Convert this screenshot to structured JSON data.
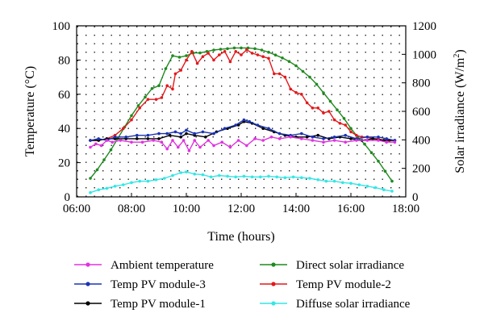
{
  "chart_data": {
    "type": "line",
    "title": "",
    "xlabel": "Time (hours)",
    "ylabel_left": "Temperature (°C)",
    "ylabel_right": "Solar irradiance (W/m²)",
    "ylabel_right_main": "Solar irradiance (W/m",
    "ylabel_right_sup": "2",
    "ylabel_right_close": ")",
    "xlim_hours": [
      6,
      18
    ],
    "ylim_left": [
      0,
      100
    ],
    "ylim_right": [
      0,
      1200
    ],
    "x_ticks": [
      {
        "hour": 6,
        "label": "06:00"
      },
      {
        "hour": 8,
        "label": "08:00"
      },
      {
        "hour": 10,
        "label": "10:00"
      },
      {
        "hour": 12,
        "label": "12:00"
      },
      {
        "hour": 14,
        "label": "14:00"
      },
      {
        "hour": 16,
        "label": "16:00"
      },
      {
        "hour": 18,
        "label": "18:00"
      }
    ],
    "y_ticks_left": [
      "0",
      "20",
      "40",
      "60",
      "80",
      "100"
    ],
    "y_ticks_right": [
      "0",
      "200",
      "400",
      "600",
      "800",
      "1000",
      "1200"
    ],
    "grid": "dotted",
    "legend_placement": "bottom",
    "series": [
      {
        "name": "Ambient temperature",
        "axis": "left",
        "color": "#e033e0",
        "x": [
          6.5,
          6.7,
          6.9,
          7.1,
          7.3,
          7.6,
          8.0,
          8.4,
          8.8,
          9.1,
          9.3,
          9.5,
          9.7,
          9.9,
          10.1,
          10.3,
          10.5,
          10.8,
          11.0,
          11.3,
          11.6,
          11.9,
          12.2,
          12.5,
          12.8,
          13.1,
          13.4,
          13.8,
          14.2,
          14.6,
          15.0,
          15.4,
          15.8,
          16.2,
          16.6,
          17.0,
          17.3,
          17.6
        ],
        "y": [
          29,
          31,
          30,
          33,
          32,
          33,
          32,
          32,
          33,
          32,
          28,
          33,
          29,
          33,
          27,
          33,
          29,
          33,
          30,
          32,
          29,
          33,
          30,
          34,
          33,
          35,
          34,
          35,
          34,
          33,
          32,
          33,
          32,
          33,
          33,
          33,
          32,
          32
        ]
      },
      {
        "name": "Temp PV module-3",
        "axis": "left",
        "color": "#1c33b3",
        "x": [
          6.5,
          6.8,
          7.1,
          7.4,
          7.8,
          8.2,
          8.6,
          9.0,
          9.3,
          9.6,
          9.8,
          10.0,
          10.3,
          10.6,
          11.0,
          11.4,
          11.8,
          12.1,
          12.3,
          12.6,
          13.0,
          13.4,
          13.8,
          14.2,
          14.6,
          15.0,
          15.4,
          15.8,
          16.2,
          16.6,
          17.0,
          17.3,
          17.6
        ],
        "y": [
          33,
          34,
          33,
          35,
          35,
          36,
          36,
          37,
          37,
          38,
          37,
          39,
          37,
          38,
          37,
          40,
          42,
          45,
          44,
          42,
          40,
          37,
          36,
          37,
          35,
          34,
          35,
          36,
          34,
          35,
          35,
          34,
          33
        ]
      },
      {
        "name": "Temp PV module-1",
        "axis": "left",
        "color": "#000000",
        "x": [
          6.5,
          6.8,
          7.1,
          7.4,
          7.8,
          8.2,
          8.6,
          9.0,
          9.4,
          9.8,
          10.0,
          10.3,
          10.7,
          11.1,
          11.5,
          11.9,
          12.1,
          12.4,
          12.8,
          13.2,
          13.6,
          14.0,
          14.4,
          14.8,
          15.2,
          15.6,
          16.0,
          16.4,
          16.8,
          17.2,
          17.6
        ],
        "y": [
          33,
          33,
          34,
          34,
          34,
          34,
          34,
          34,
          36,
          35,
          37,
          36,
          35,
          38,
          40,
          42,
          44,
          43,
          40,
          38,
          36,
          35,
          35,
          36,
          34,
          35,
          34,
          33,
          34,
          33,
          33
        ]
      },
      {
        "name": "Direct solar irradiance",
        "axis": "right",
        "color": "#1f8a1f",
        "x": [
          6.5,
          6.75,
          7.0,
          7.25,
          7.5,
          7.75,
          8.0,
          8.25,
          8.5,
          8.75,
          9.0,
          9.25,
          9.5,
          9.75,
          10.0,
          10.25,
          10.5,
          10.75,
          11.0,
          11.25,
          11.5,
          11.75,
          12.0,
          12.25,
          12.5,
          12.75,
          13.0,
          13.25,
          13.5,
          13.75,
          14.0,
          14.25,
          14.5,
          14.75,
          15.0,
          15.25,
          15.5,
          15.75,
          16.0,
          16.25,
          16.5,
          16.75,
          17.0,
          17.25,
          17.5
        ],
        "y": [
          130,
          190,
          260,
          330,
          410,
          490,
          570,
          640,
          700,
          760,
          780,
          900,
          990,
          980,
          990,
          1010,
          1010,
          1020,
          1030,
          1035,
          1040,
          1045,
          1045,
          1045,
          1040,
          1030,
          1015,
          995,
          975,
          950,
          920,
          880,
          840,
          790,
          730,
          670,
          610,
          550,
          480,
          420,
          370,
          310,
          250,
          180,
          110
        ]
      },
      {
        "name": "Temp PV module-2",
        "axis": "left",
        "color": "#e3191c",
        "x": [
          6.5,
          6.8,
          7.1,
          7.4,
          7.7,
          8.0,
          8.3,
          8.6,
          8.9,
          9.1,
          9.3,
          9.5,
          9.6,
          9.8,
          10.0,
          10.2,
          10.4,
          10.6,
          10.8,
          11.0,
          11.2,
          11.4,
          11.6,
          11.8,
          12.0,
          12.2,
          12.4,
          12.6,
          12.8,
          13.0,
          13.2,
          13.4,
          13.6,
          13.8,
          14.0,
          14.2,
          14.4,
          14.6,
          14.8,
          15.0,
          15.2,
          15.4,
          15.6,
          15.8,
          16.0,
          16.2,
          16.4,
          16.6,
          16.8,
          17.0,
          17.2,
          17.4,
          17.6
        ],
        "y": [
          33,
          33,
          34,
          36,
          40,
          45,
          52,
          57,
          57,
          58,
          65,
          63,
          72,
          74,
          80,
          85,
          78,
          82,
          84,
          80,
          83,
          85,
          79,
          85,
          83,
          86,
          84,
          83,
          82,
          81,
          72,
          72,
          70,
          63,
          61,
          60,
          55,
          52,
          52,
          49,
          50,
          45,
          43,
          42,
          38,
          36,
          35,
          35,
          34,
          34,
          33,
          33,
          33
        ]
      },
      {
        "name": "Diffuse solar irradiance",
        "axis": "right",
        "color": "#33e6e6",
        "x": [
          6.5,
          6.8,
          7.1,
          7.4,
          7.7,
          8.0,
          8.3,
          8.6,
          8.9,
          9.2,
          9.5,
          9.8,
          10.0,
          10.3,
          10.6,
          10.9,
          11.2,
          11.5,
          11.8,
          12.1,
          12.4,
          12.7,
          13.0,
          13.3,
          13.6,
          13.9,
          14.2,
          14.5,
          14.8,
          15.1,
          15.4,
          15.7,
          16.0,
          16.3,
          16.6,
          16.9,
          17.2,
          17.5
        ],
        "y": [
          30,
          50,
          60,
          75,
          85,
          100,
          110,
          110,
          120,
          130,
          150,
          170,
          175,
          160,
          155,
          140,
          150,
          145,
          140,
          145,
          140,
          140,
          145,
          140,
          135,
          140,
          135,
          130,
          120,
          110,
          110,
          100,
          95,
          85,
          75,
          65,
          50,
          40
        ]
      }
    ]
  }
}
